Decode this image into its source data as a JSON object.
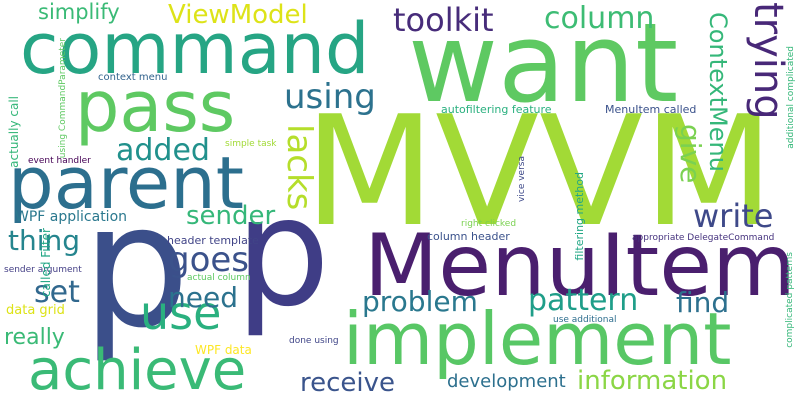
{
  "words": [
    {
      "text": "MVVM",
      "color": "#a2da36",
      "orientation": "horizontal"
    },
    {
      "text": "p",
      "color": "#3b4f8a",
      "orientation": "horizontal"
    },
    {
      "text": "p",
      "color": "#3f3d86",
      "orientation": "horizontal"
    },
    {
      "text": "MenuItem",
      "color": "#4a1f6e",
      "orientation": "horizontal"
    },
    {
      "text": "want",
      "color": "#5ec962",
      "orientation": "horizontal"
    },
    {
      "text": "command",
      "color": "#26a584",
      "orientation": "horizontal"
    },
    {
      "text": "implement",
      "color": "#58c765",
      "orientation": "horizontal"
    },
    {
      "text": "parent",
      "color": "#2c6f8e",
      "orientation": "horizontal"
    },
    {
      "text": "pass",
      "color": "#5ec962",
      "orientation": "horizontal"
    },
    {
      "text": "achieve",
      "color": "#3aba76",
      "orientation": "horizontal"
    },
    {
      "text": "use",
      "color": "#2ab07f",
      "orientation": "horizontal"
    },
    {
      "text": "trying",
      "color": "#482878",
      "orientation": "vertical"
    },
    {
      "text": "toolkit",
      "color": "#472c7a",
      "orientation": "horizontal"
    },
    {
      "text": "column",
      "color": "#3dbc74",
      "orientation": "horizontal"
    },
    {
      "text": "ViewModel",
      "color": "#dde318",
      "orientation": "horizontal"
    },
    {
      "text": "simplify",
      "color": "#3aba76",
      "orientation": "horizontal"
    },
    {
      "text": "using",
      "color": "#2c728e",
      "orientation": "horizontal"
    },
    {
      "text": "added",
      "color": "#21918c",
      "orientation": "horizontal"
    },
    {
      "text": "lacks",
      "color": "#b5de2b",
      "orientation": "vertical"
    },
    {
      "text": "ContextMenu",
      "color": "#35b779",
      "orientation": "vertical"
    },
    {
      "text": "give",
      "color": "#7ad151",
      "orientation": "vertical"
    },
    {
      "text": "sender",
      "color": "#35b779",
      "orientation": "horizontal"
    },
    {
      "text": "write",
      "color": "#3e4989",
      "orientation": "horizontal"
    },
    {
      "text": "thing",
      "color": "#25858e",
      "orientation": "horizontal"
    },
    {
      "text": "goes",
      "color": "#3b528b",
      "orientation": "horizontal"
    },
    {
      "text": "set",
      "color": "#31688e",
      "orientation": "horizontal"
    },
    {
      "text": "need",
      "color": "#2c728e",
      "orientation": "horizontal"
    },
    {
      "text": "problem",
      "color": "#2a788e",
      "orientation": "horizontal"
    },
    {
      "text": "pattern",
      "color": "#1f9e89",
      "orientation": "horizontal"
    },
    {
      "text": "find",
      "color": "#2d708e",
      "orientation": "horizontal"
    },
    {
      "text": "really",
      "color": "#3aba76",
      "orientation": "horizontal"
    },
    {
      "text": "receive",
      "color": "#3a548c",
      "orientation": "horizontal"
    },
    {
      "text": "information",
      "color": "#8bd646",
      "orientation": "horizontal"
    },
    {
      "text": "development",
      "color": "#2d708e",
      "orientation": "horizontal"
    },
    {
      "text": "context menu",
      "color": "#33638d",
      "orientation": "horizontal"
    },
    {
      "text": "autofiltering feature",
      "color": "#2ab07f",
      "orientation": "horizontal"
    },
    {
      "text": "MenuItem called",
      "color": "#3b528b",
      "orientation": "horizontal"
    },
    {
      "text": "simple task",
      "color": "#a2da37",
      "orientation": "horizontal"
    },
    {
      "text": "event handler",
      "color": "#440154",
      "orientation": "horizontal"
    },
    {
      "text": "WPF application",
      "color": "#2a788e",
      "orientation": "horizontal"
    },
    {
      "text": "header template",
      "color": "#414487",
      "orientation": "horizontal"
    },
    {
      "text": "column header",
      "color": "#3b528b",
      "orientation": "horizontal"
    },
    {
      "text": "right clicked",
      "color": "#7ad151",
      "orientation": "horizontal"
    },
    {
      "text": "appropriate DelegateCommand",
      "color": "#46337e",
      "orientation": "horizontal"
    },
    {
      "text": "sender argument",
      "color": "#433e85",
      "orientation": "horizontal"
    },
    {
      "text": "actual column",
      "color": "#5ec962",
      "orientation": "horizontal"
    },
    {
      "text": "data grid",
      "color": "#dde318",
      "orientation": "horizontal"
    },
    {
      "text": "WPF data",
      "color": "#fde725",
      "orientation": "horizontal"
    },
    {
      "text": "done using",
      "color": "#404688",
      "orientation": "horizontal"
    },
    {
      "text": "use additional",
      "color": "#2e6e8e",
      "orientation": "horizontal"
    },
    {
      "text": "called Filter",
      "color": "#22a785",
      "orientation": "vertical"
    },
    {
      "text": "actually call",
      "color": "#35b779",
      "orientation": "vertical"
    },
    {
      "text": "using CommandParameter",
      "color": "#5ec962",
      "orientation": "vertical"
    },
    {
      "text": "filtering method",
      "color": "#22a785",
      "orientation": "vertical"
    },
    {
      "text": "vice versa",
      "color": "#3e4989",
      "orientation": "vertical"
    },
    {
      "text": "additional complicated",
      "color": "#35b779",
      "orientation": "vertical"
    },
    {
      "text": "complicated patterns",
      "color": "#35b779",
      "orientation": "vertical"
    }
  ]
}
